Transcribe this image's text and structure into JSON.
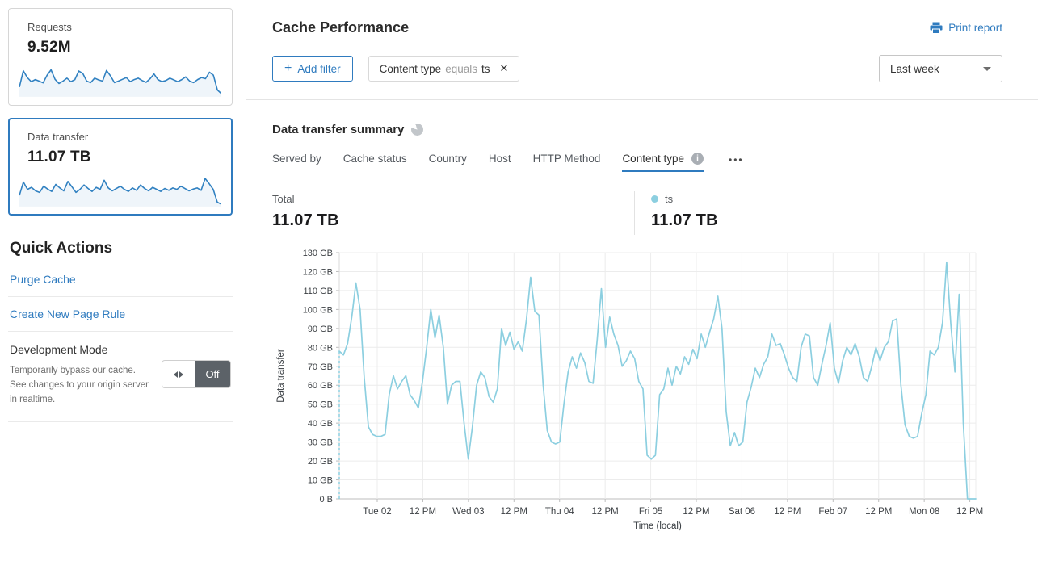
{
  "colors": {
    "link_blue": "#2f7bbf",
    "chart_line": "#8ccfe0",
    "sparkline_blue": "#3181c1",
    "active_tab_underline": "#2f7bbf",
    "toggle_off_bg": "#5c6268"
  },
  "icons": {
    "close": "✕",
    "ellipsis": "•••",
    "info": "i",
    "plus": "+"
  },
  "sidebar": {
    "cards": [
      {
        "label": "Requests",
        "value": "9.52M",
        "selected": false
      },
      {
        "label": "Data transfer",
        "value": "11.07 TB",
        "selected": true
      }
    ],
    "quick_actions": {
      "title": "Quick Actions",
      "links": [
        "Purge Cache",
        "Create New Page Rule"
      ],
      "development_mode": {
        "title": "Development Mode",
        "description": "Temporarily bypass our cache. See changes to your origin server in realtime.",
        "toggle_state": "Off"
      }
    }
  },
  "header": {
    "title": "Cache Performance",
    "print_report_label": "Print report",
    "add_filter_label": "Add filter",
    "filter_chip": {
      "field": "Content type",
      "operator": "equals",
      "value": "ts"
    },
    "time_range_value": "Last week"
  },
  "summary": {
    "title": "Data transfer summary",
    "tabs": [
      "Served by",
      "Cache status",
      "Country",
      "Host",
      "HTTP Method",
      "Content type"
    ],
    "active_tab": "Content type",
    "total_label": "Total",
    "total_value": "11.07 TB",
    "legend": {
      "name": "ts",
      "value": "11.07 TB",
      "color": "#8ccfe0"
    }
  },
  "chart_data": [
    {
      "type": "line",
      "title": "Data transfer summary",
      "ylabel": "Data transfer",
      "xlabel": "Time (local)",
      "ylim": [
        0,
        130
      ],
      "y_unit": "GB",
      "grid": true,
      "start_dashed_to_zero": true,
      "ytick_labels": [
        "0 B",
        "10 GB",
        "20 GB",
        "30 GB",
        "40 GB",
        "50 GB",
        "60 GB",
        "70 GB",
        "80 GB",
        "90 GB",
        "100 GB",
        "110 GB",
        "120 GB",
        "130 GB"
      ],
      "xtick_labels": [
        "Tue 02",
        "12 PM",
        "Wed 03",
        "12 PM",
        "Thu 04",
        "12 PM",
        "Fri 05",
        "12 PM",
        "Sat 06",
        "12 PM",
        "Feb 07",
        "12 PM",
        "Mon 08",
        "12 PM"
      ],
      "series": [
        {
          "name": "ts",
          "color": "#8ccfe0",
          "unit": "GB",
          "values": [
            78,
            76,
            82,
            96,
            114,
            100,
            64,
            38,
            34,
            33,
            33,
            34,
            55,
            65,
            58,
            62,
            65,
            55,
            52,
            48,
            62,
            80,
            100,
            85,
            97,
            80,
            50,
            60,
            62,
            62,
            40,
            21,
            38,
            60,
            67,
            64,
            54,
            51,
            58,
            90,
            81,
            88,
            79,
            83,
            78,
            95,
            117,
            99,
            97,
            60,
            36,
            30,
            29,
            30,
            50,
            67,
            75,
            69,
            77,
            72,
            62,
            61,
            84,
            111,
            80,
            96,
            87,
            81,
            70,
            73,
            78,
            74,
            62,
            58,
            23,
            21,
            23,
            55,
            58,
            69,
            60,
            70,
            66,
            75,
            71,
            79,
            74,
            87,
            80,
            88,
            95,
            107,
            90,
            46,
            28,
            35,
            28,
            30,
            51,
            59,
            69,
            64,
            71,
            75,
            87,
            81,
            82,
            76,
            69,
            64,
            62,
            80,
            87,
            86,
            64,
            60,
            71,
            81,
            93,
            69,
            61,
            73,
            80,
            76,
            82,
            75,
            64,
            62,
            70,
            80,
            73,
            80,
            83,
            94,
            95,
            60,
            39,
            33,
            32,
            33,
            45,
            55,
            78,
            76,
            80,
            93,
            125,
            92,
            67,
            108,
            40,
            0,
            0,
            0
          ]
        }
      ]
    },
    {
      "type": "line",
      "name": "requests-sparkline",
      "color": "#3181c1",
      "values": [
        30,
        85,
        62,
        48,
        55,
        50,
        44,
        70,
        88,
        56,
        42,
        50,
        60,
        48,
        55,
        84,
        76,
        50,
        45,
        60,
        54,
        50,
        86,
        68,
        45,
        50,
        56,
        62,
        48,
        55,
        60,
        52,
        46,
        58,
        74,
        55,
        48,
        52,
        60,
        54,
        48,
        55,
        64,
        50,
        45,
        55,
        62,
        58,
        80,
        70,
        20,
        8
      ]
    },
    {
      "type": "line",
      "name": "data-transfer-sparkline",
      "color": "#3181c1",
      "values": [
        35,
        80,
        55,
        62,
        50,
        45,
        66,
        56,
        48,
        72,
        60,
        50,
        82,
        64,
        45,
        55,
        70,
        58,
        48,
        62,
        55,
        86,
        60,
        50,
        58,
        66,
        55,
        48,
        60,
        52,
        70,
        58,
        50,
        62,
        55,
        48,
        58,
        52,
        60,
        55,
        66,
        58,
        50,
        56,
        60,
        52,
        92,
        74,
        55,
        12,
        5
      ]
    }
  ]
}
